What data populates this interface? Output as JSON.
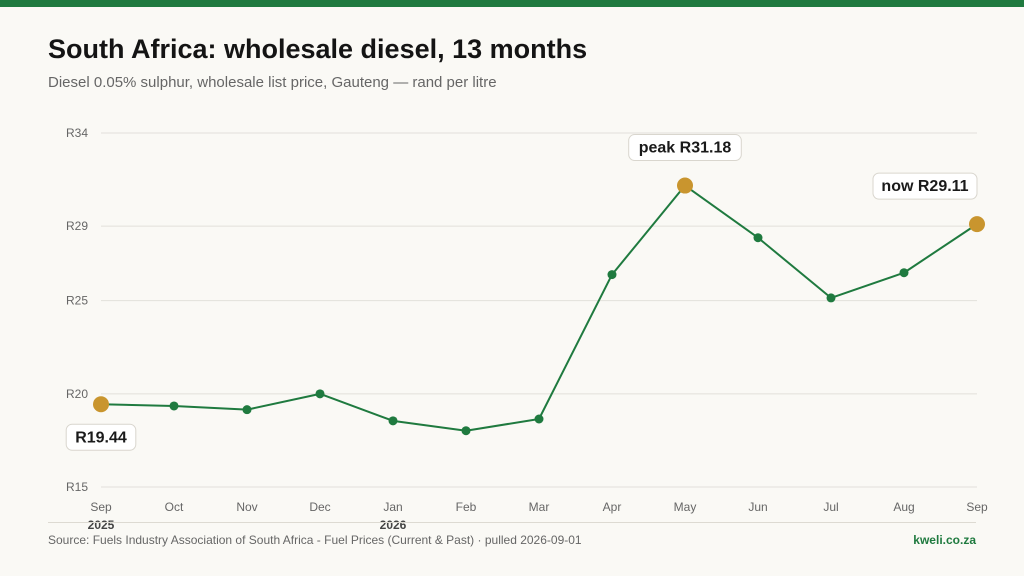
{
  "header": {
    "title": "South Africa: wholesale diesel, 13 months",
    "subtitle": "Diesel 0.05% sulphur, wholesale list price, Gauteng — rand per litre"
  },
  "footer": {
    "source": "Source: Fuels Industry Association of South Africa - Fuel Prices (Current & Past) · pulled 2026-09-01",
    "brand": "kweli.co.za"
  },
  "colors": {
    "line": "#1f7a3f",
    "point": "#1f7a3f",
    "highlight": "#c9952e",
    "grid": "#e2e0da",
    "accent_bar": "#1f7a3f"
  },
  "chart_data": {
    "type": "line",
    "title": "South Africa: wholesale diesel, 13 months",
    "subtitle": "Diesel 0.05% sulphur, wholesale list price, Gauteng — rand per litre",
    "categories": [
      "Sep",
      "Oct",
      "Nov",
      "Dec",
      "Jan",
      "Feb",
      "Mar",
      "Apr",
      "May",
      "Jun",
      "Jul",
      "Aug",
      "Sep"
    ],
    "year_labels": [
      "2025",
      "",
      "",
      "",
      "2026",
      "",
      "",
      "",
      "",
      "",
      "",
      "",
      ""
    ],
    "values": [
      19.44,
      19.35,
      19.15,
      20.0,
      18.55,
      18.02,
      18.65,
      26.4,
      31.18,
      28.38,
      25.15,
      26.5,
      29.11
    ],
    "yticks": [
      15,
      20,
      25,
      29,
      34
    ],
    "ytick_labels": [
      "R15",
      "R20",
      "R25",
      "R29",
      "R34"
    ],
    "ylim": [
      15,
      34
    ],
    "xlabel": "",
    "ylabel": "",
    "grid": true,
    "highlights": [
      0,
      8,
      12
    ],
    "annotations": [
      {
        "index": 0,
        "text": "R19.44",
        "position": "below"
      },
      {
        "index": 8,
        "text": "peak R31.18",
        "position": "above"
      },
      {
        "index": 12,
        "text": "now R29.11",
        "position": "above"
      }
    ]
  }
}
